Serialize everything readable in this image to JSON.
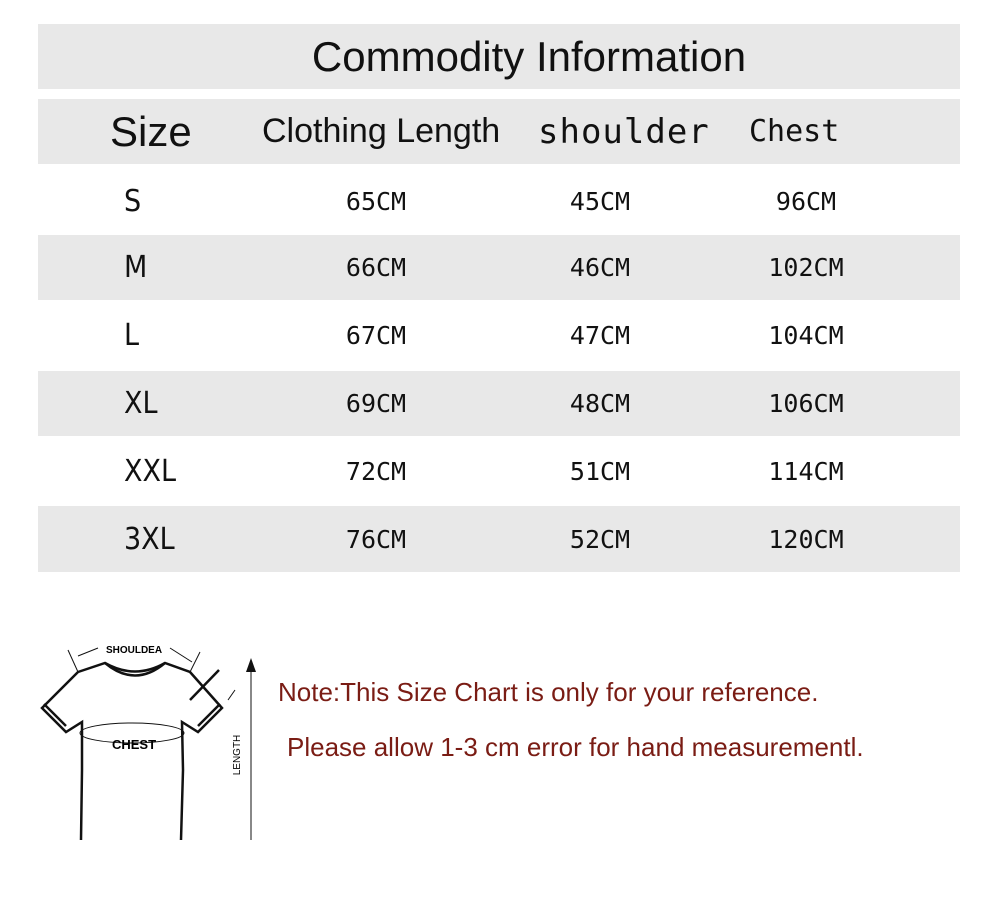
{
  "title": "Commodity Information",
  "headers": [
    "Size",
    "Clothing Length",
    "shoulder",
    "Chest"
  ],
  "rows": [
    {
      "size": "S",
      "length": "65CM",
      "shoulder": "45CM",
      "chest": "96CM"
    },
    {
      "size": "M",
      "length": "66CM",
      "shoulder": "46CM",
      "chest": "102CM"
    },
    {
      "size": "L",
      "length": "67CM",
      "shoulder": "47CM",
      "chest": "104CM"
    },
    {
      "size": "XL",
      "length": "69CM",
      "shoulder": "48CM",
      "chest": "106CM"
    },
    {
      "size": "XXL",
      "length": "72CM",
      "shoulder": "51CM",
      "chest": "114CM"
    },
    {
      "size": "3XL",
      "length": "76CM",
      "shoulder": "52CM",
      "chest": "120CM"
    }
  ],
  "diagram": {
    "shoulder_label": "SHOULDEA",
    "chest_label": "CHEST",
    "length_label": "LENGTH"
  },
  "notes": [
    "Note:This Size Chart is only for your reference.",
    "Please allow 1-3 cm error for hand measurementl."
  ],
  "colors": {
    "band": "#e8e8e8",
    "note_text": "#7a1c14"
  }
}
